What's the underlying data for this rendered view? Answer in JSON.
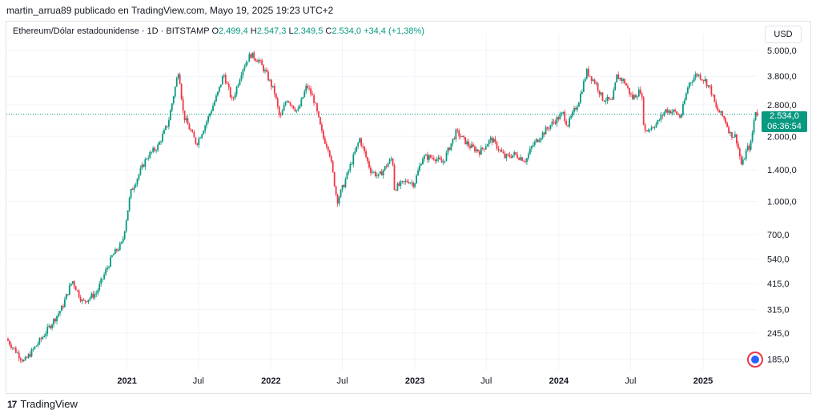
{
  "header": {
    "publisher_line": "martin_arrua89 publicado en TradingView.com, Mayo 19, 2025 19:23 UTC+2"
  },
  "legend": {
    "symbol": "Ethereum/Dólar estadounidense · 1D · BITSTAMP",
    "open_label": "O",
    "open": "2.499,4",
    "high_label": "H",
    "high": "2.547,3",
    "low_label": "L",
    "low": "2.349,5",
    "close_label": "C",
    "close": "2.534,0",
    "change": "+34,4 (+1,38%)"
  },
  "currency_button": "USD",
  "price_tag": {
    "price": "2.534,0",
    "countdown": "06:36:54"
  },
  "footer": {
    "brand": "TradingView",
    "logo_mark": "17"
  },
  "colors": {
    "up": "#089981",
    "down": "#f23645",
    "grid": "#f0f3fa",
    "tag": "#089981"
  },
  "icons": {
    "currency_button_icon": "none",
    "bottom_right": "recommendations-icon"
  },
  "chart_data": {
    "type": "line",
    "chart_style": "candlestick (daily), drawn as close path approximation",
    "title": "",
    "y_scale": "log",
    "ylim": [
      165,
      5500
    ],
    "x_range": [
      "2020-03-01",
      "2025-05-19"
    ],
    "y_ticks": [
      5000,
      3800,
      2800,
      2000,
      1400,
      1000,
      700,
      540,
      415,
      315,
      245,
      185
    ],
    "y_tick_labels": [
      "5.000,0",
      "3.800,0",
      "2.800,0",
      "2.000,0",
      "1.400,0",
      "1.000,0",
      "700,0",
      "540,0",
      "415,0",
      "315,0",
      "245,0",
      "185,0"
    ],
    "x_ticks": [
      {
        "label": "2021",
        "date": "2021-01-01"
      },
      {
        "label": "Jul",
        "date": "2021-07-01"
      },
      {
        "label": "2022",
        "date": "2022-01-01"
      },
      {
        "label": "Jul",
        "date": "2022-07-01"
      },
      {
        "label": "2023",
        "date": "2023-01-01"
      },
      {
        "label": "Jul",
        "date": "2023-07-01"
      },
      {
        "label": "2024",
        "date": "2024-01-01"
      },
      {
        "label": "Jul",
        "date": "2024-07-01"
      },
      {
        "label": "2025",
        "date": "2025-01-01"
      }
    ],
    "last_price": 2534,
    "grid": true,
    "series": [
      {
        "x": [
          "2020-03-01",
          "2020-04-15",
          "2020-06-01",
          "2020-07-20",
          "2020-08-15",
          "2020-09-10",
          "2020-10-15",
          "2020-11-25",
          "2020-12-20",
          "2021-01-10",
          "2021-02-20",
          "2021-03-20",
          "2021-04-15",
          "2021-05-12",
          "2021-05-24",
          "2021-06-26",
          "2021-07-20",
          "2021-08-20",
          "2021-09-03",
          "2021-09-25",
          "2021-10-20",
          "2021-11-10",
          "2021-12-01",
          "2021-12-20",
          "2022-01-10",
          "2022-01-24",
          "2022-02-10",
          "2022-03-10",
          "2022-04-02",
          "2022-04-20",
          "2022-05-12",
          "2022-05-28",
          "2022-06-18",
          "2022-07-05",
          "2022-08-14",
          "2022-09-10",
          "2022-10-01",
          "2022-11-05",
          "2022-11-10",
          "2022-12-15",
          "2022-12-30",
          "2023-01-20",
          "2023-02-20",
          "2023-03-12",
          "2023-04-16",
          "2023-05-20",
          "2023-06-15",
          "2023-07-14",
          "2023-08-17",
          "2023-09-10",
          "2023-10-10",
          "2023-10-25",
          "2023-11-20",
          "2023-12-15",
          "2024-01-12",
          "2024-01-23",
          "2024-02-20",
          "2024-03-12",
          "2024-04-05",
          "2024-04-20",
          "2024-05-15",
          "2024-05-27",
          "2024-06-15",
          "2024-07-05",
          "2024-07-28",
          "2024-08-05",
          "2024-09-06",
          "2024-09-28",
          "2024-10-20",
          "2024-11-05",
          "2024-11-25",
          "2024-12-16",
          "2025-01-05",
          "2025-01-20",
          "2025-02-03",
          "2025-02-25",
          "2025-03-11",
          "2025-03-25",
          "2025-04-09",
          "2025-04-22",
          "2025-05-01",
          "2025-05-08",
          "2025-05-13",
          "2025-05-19"
        ],
        "values": [
          230,
          180,
          235,
          320,
          430,
          340,
          375,
          560,
          640,
          1100,
          1600,
          1800,
          2300,
          4100,
          2500,
          1850,
          2300,
          3200,
          3900,
          2900,
          4100,
          4800,
          4500,
          3900,
          3200,
          2400,
          3000,
          2600,
          3450,
          2950,
          2000,
          1750,
          1000,
          1200,
          1950,
          1400,
          1300,
          1600,
          1150,
          1250,
          1200,
          1600,
          1600,
          1500,
          2100,
          1800,
          1700,
          1950,
          1600,
          1650,
          1550,
          1800,
          2050,
          2300,
          2550,
          2250,
          2900,
          4000,
          3500,
          3000,
          2900,
          3800,
          3600,
          3000,
          3300,
          2100,
          2300,
          2650,
          2600,
          2450,
          3500,
          3900,
          3650,
          3300,
          2700,
          2400,
          2050,
          2000,
          1450,
          1750,
          1800,
          2200,
          2650,
          2534
        ]
      }
    ]
  }
}
